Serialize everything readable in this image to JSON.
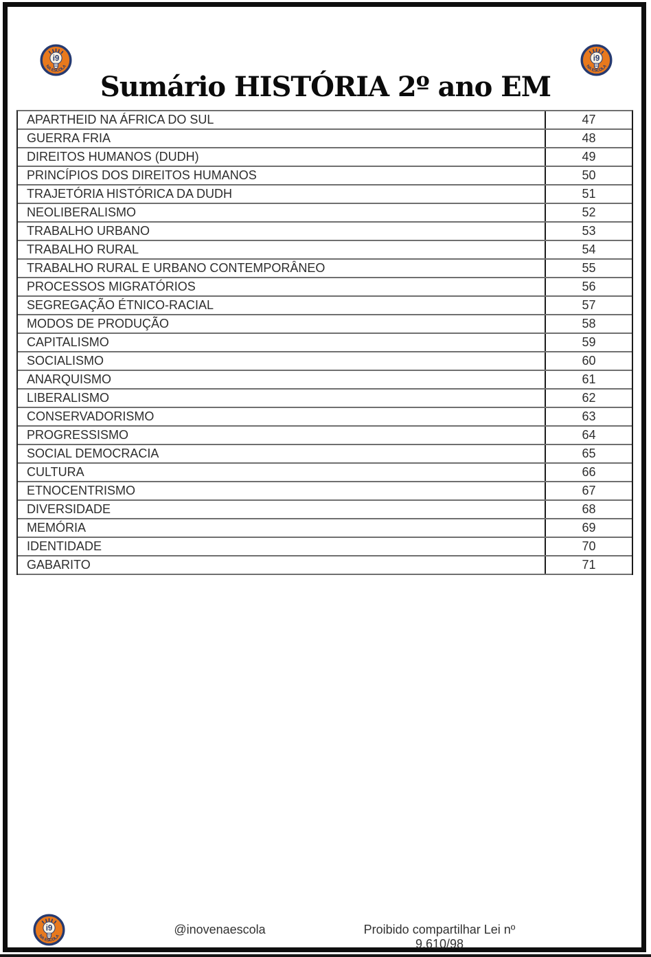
{
  "page": {
    "title": "Sumário HISTÓRIA 2º ano EM"
  },
  "logo": {
    "label": "i9",
    "sub": "NA ESCOLA",
    "orange": "#E8791D",
    "navy": "#263A70",
    "bulb": "#FAF3E4"
  },
  "toc": {
    "rows": [
      {
        "label": "APARTHEID NA ÁFRICA DO SUL",
        "page": "47"
      },
      {
        "label": "GUERRA FRIA",
        "page": "48"
      },
      {
        "label": "DIREITOS HUMANOS (DUDH)",
        "page": "49"
      },
      {
        "label": "PRINCÍPIOS DOS DIREITOS HUMANOS",
        "page": "50"
      },
      {
        "label": "TRAJETÓRIA HISTÓRICA DA DUDH",
        "page": "51"
      },
      {
        "label": "NEOLIBERALISMO",
        "page": "52"
      },
      {
        "label": "TRABALHO URBANO",
        "page": "53"
      },
      {
        "label": "TRABALHO RURAL",
        "page": "54"
      },
      {
        "label": "TRABALHO RURAL E URBANO CONTEMPORÂNEO",
        "page": "55"
      },
      {
        "label": "PROCESSOS MIGRATÓRIOS",
        "page": "56"
      },
      {
        "label": "SEGREGAÇÃO ÉTNICO-RACIAL",
        "page": "57"
      },
      {
        "label": "MODOS DE PRODUÇÃO",
        "page": "58"
      },
      {
        "label": "CAPITALISMO",
        "page": "59"
      },
      {
        "label": "SOCIALISMO",
        "page": "60"
      },
      {
        "label": "ANARQUISMO",
        "page": "61"
      },
      {
        "label": "LIBERALISMO",
        "page": "62"
      },
      {
        "label": "CONSERVADORISMO",
        "page": "63"
      },
      {
        "label": "PROGRESSISMO",
        "page": "64"
      },
      {
        "label": "SOCIAL DEMOCRACIA",
        "page": "65"
      },
      {
        "label": "CULTURA",
        "page": "66"
      },
      {
        "label": "ETNOCENTRISMO",
        "page": "67"
      },
      {
        "label": "DIVERSIDADE",
        "page": "68"
      },
      {
        "label": "MEMÓRIA",
        "page": "69"
      },
      {
        "label": "IDENTIDADE",
        "page": "70"
      },
      {
        "label": "GABARITO",
        "page": "71"
      }
    ]
  },
  "footer": {
    "handle": "@inovenaescola",
    "notice": "Proibido compartilhar Lei nº 9.610/98"
  }
}
